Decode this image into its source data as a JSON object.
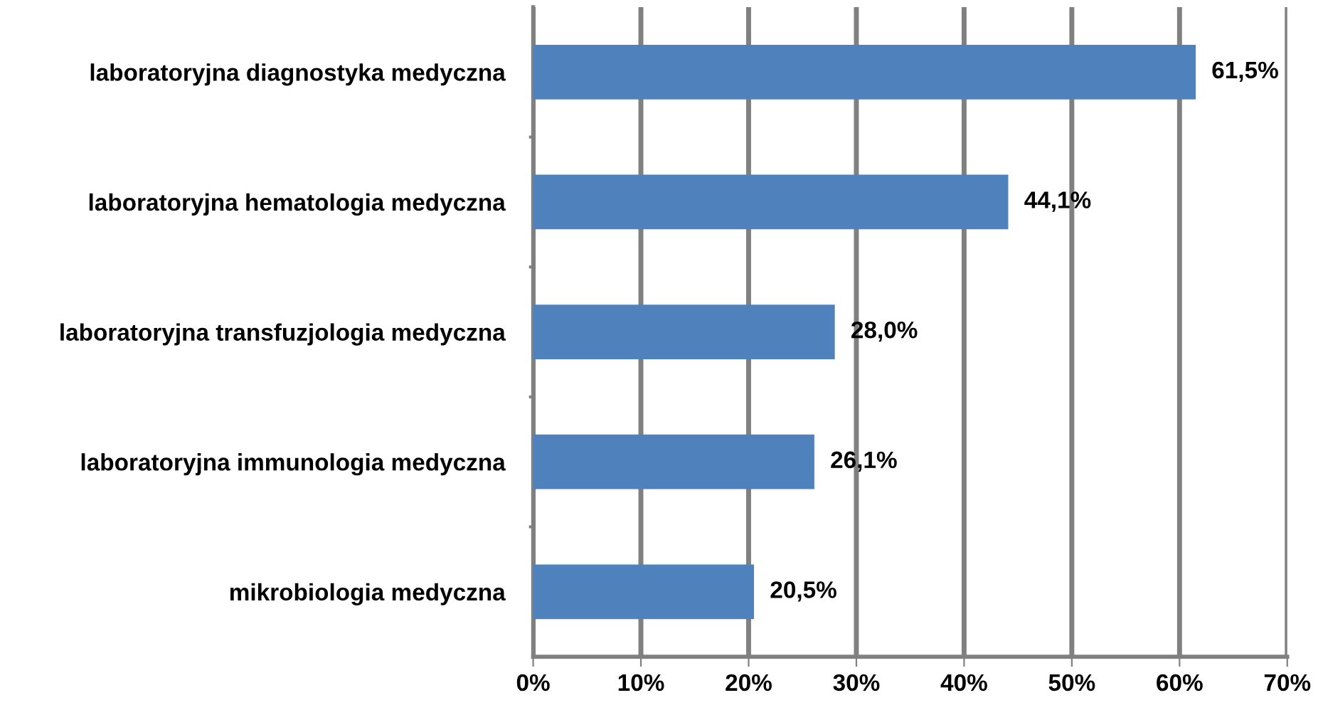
{
  "chart_data": {
    "type": "bar",
    "orientation": "horizontal",
    "categories": [
      "laboratoryjna diagnostyka medyczna",
      "laboratoryjna hematologia medyczna",
      "laboratoryjna transfuzjologia medyczna",
      "laboratoryjna immunologia medyczna",
      "mikrobiologia medyczna"
    ],
    "values": [
      61.5,
      44.1,
      28.0,
      26.1,
      20.5
    ],
    "value_labels": [
      "61,5%",
      "44,1%",
      "28,0%",
      "26,1%",
      "20,5%"
    ],
    "color": "#4f81bd",
    "xlim": [
      0,
      70
    ],
    "xticks": [
      {
        "value": 0,
        "label": "0%"
      },
      {
        "value": 10,
        "label": "10%"
      },
      {
        "value": 20,
        "label": "20%"
      },
      {
        "value": 30,
        "label": "30%"
      },
      {
        "value": 40,
        "label": "40%"
      },
      {
        "value": 50,
        "label": "50%"
      },
      {
        "value": 60,
        "label": "60%"
      },
      {
        "value": 70,
        "label": "70%"
      }
    ],
    "grid": "x"
  }
}
